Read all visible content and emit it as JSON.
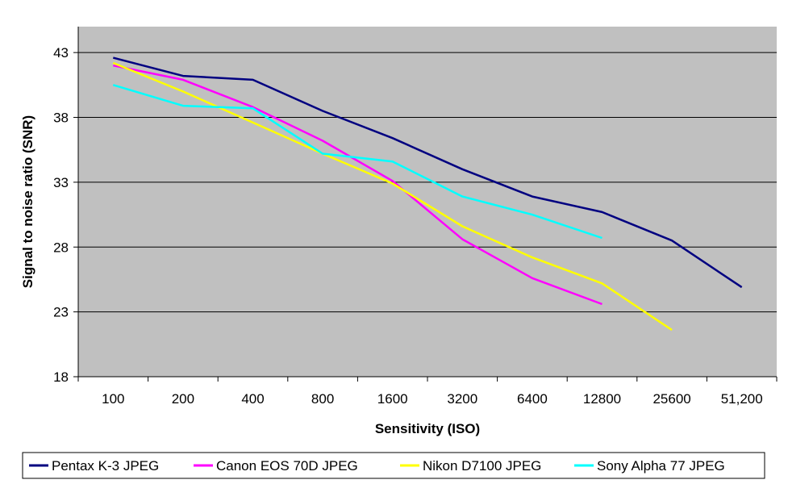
{
  "chart_data": {
    "type": "line",
    "title": "",
    "xlabel": "Sensitivity (ISO)",
    "ylabel": "Signal to noise ratio (SNR)",
    "categories": [
      "100",
      "200",
      "400",
      "800",
      "1600",
      "3200",
      "6400",
      "12800",
      "25600",
      "51,200"
    ],
    "yticks": [
      18,
      23,
      28,
      33,
      38,
      43
    ],
    "ylim": [
      18,
      45
    ],
    "grid": "horizontal",
    "legend_position": "bottom",
    "plot_background": "#c0c0c0",
    "series": [
      {
        "name": "Pentax K-3 JPEG",
        "color": "#000080",
        "values": [
          42.6,
          41.2,
          40.9,
          38.5,
          36.4,
          34.0,
          31.9,
          30.7,
          28.5,
          24.9
        ]
      },
      {
        "name": "Canon EOS 70D JPEG",
        "color": "#ff00ff",
        "values": [
          42.0,
          40.9,
          38.8,
          36.2,
          33.1,
          28.6,
          25.6,
          23.6,
          null,
          null
        ]
      },
      {
        "name": "Nikon D7100 JPEG",
        "color": "#ffff00",
        "values": [
          42.2,
          40.0,
          37.6,
          35.2,
          32.9,
          29.6,
          27.2,
          25.2,
          21.6,
          null
        ]
      },
      {
        "name": "Sony Alpha 77 JPEG",
        "color": "#00ffff",
        "values": [
          40.5,
          38.9,
          38.7,
          35.2,
          34.6,
          31.9,
          30.5,
          28.7,
          null,
          null
        ]
      }
    ]
  }
}
